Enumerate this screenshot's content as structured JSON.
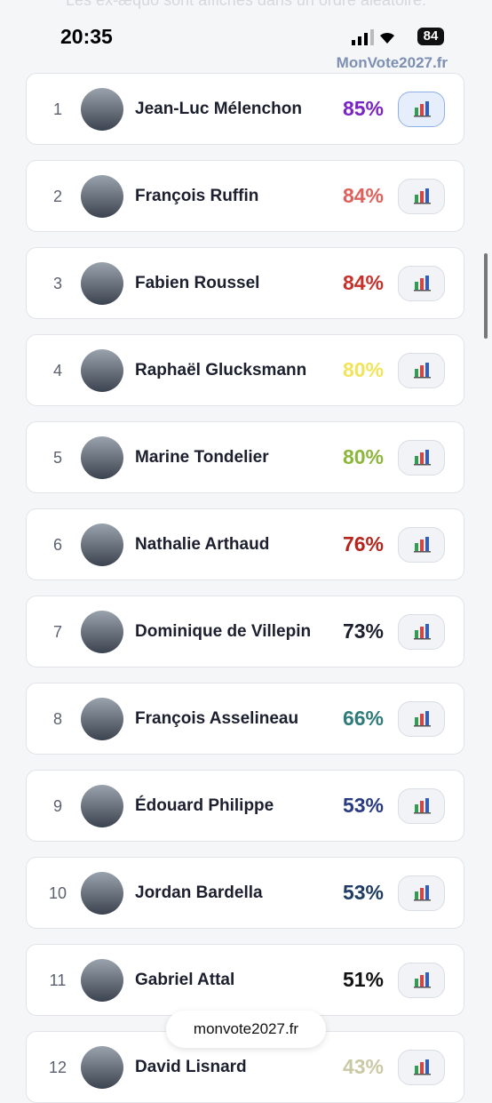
{
  "status_bar": {
    "time": "20:35",
    "battery": "84"
  },
  "top_note": "Les ex-æquo sont affichés dans un ordre aléatoire.",
  "brand": "MonVote2027.fr",
  "rows": [
    {
      "rank": "1",
      "name": "Jean-Luc Mélenchon",
      "score": "85%",
      "color": "#7a24c6"
    },
    {
      "rank": "2",
      "name": "François Ruffin",
      "score": "84%",
      "color": "#e0605c"
    },
    {
      "rank": "3",
      "name": "Fabien Roussel",
      "score": "84%",
      "color": "#c8302a"
    },
    {
      "rank": "4",
      "name": "Raphaël Glucksmann",
      "score": "80%",
      "color": "#f2e45a"
    },
    {
      "rank": "5",
      "name": "Marine Tondelier",
      "score": "80%",
      "color": "#8cb63c"
    },
    {
      "rank": "6",
      "name": "Nathalie Arthaud",
      "score": "76%",
      "color": "#b8231c"
    },
    {
      "rank": "7",
      "name": "Dominique de Villepin",
      "score": "73%",
      "color": "#1b1f2e"
    },
    {
      "rank": "8",
      "name": "François Asselineau",
      "score": "66%",
      "color": "#2f7b79"
    },
    {
      "rank": "9",
      "name": "Édouard Philippe",
      "score": "53%",
      "color": "#283a82"
    },
    {
      "rank": "10",
      "name": "Jordan Bardella",
      "score": "53%",
      "color": "#1f3d62"
    },
    {
      "rank": "11",
      "name": "Gabriel Attal",
      "score": "51%",
      "color": "#121212"
    },
    {
      "rank": "12",
      "name": "David Lisnard",
      "score": "43%",
      "color": "#c9c9a6"
    }
  ],
  "footer": "monvote2027.fr"
}
